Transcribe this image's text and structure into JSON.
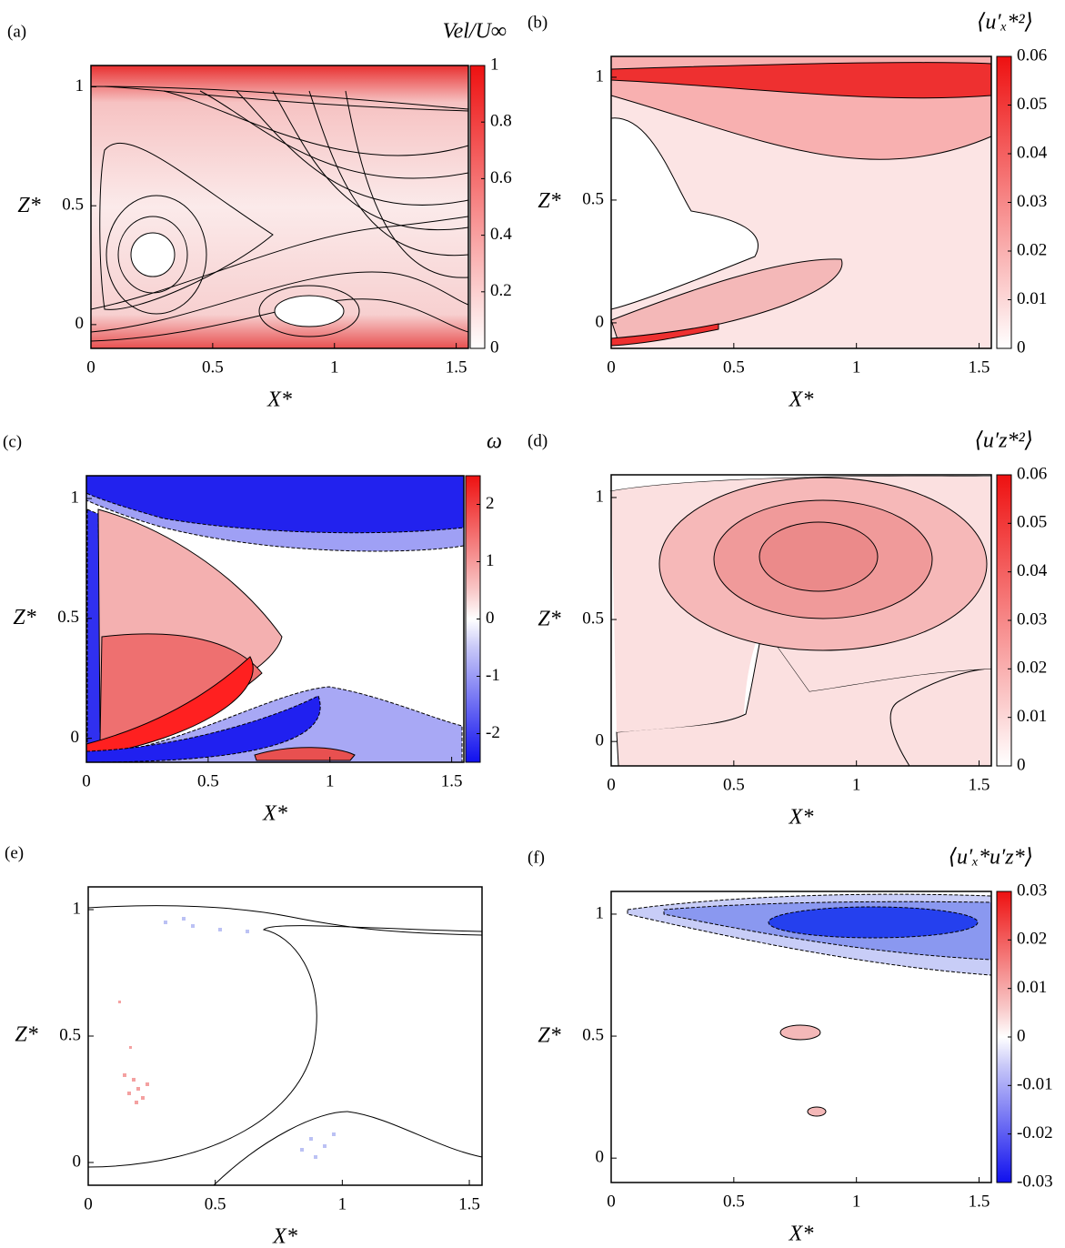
{
  "chart_data": [
    {
      "type": "contour",
      "panel_label": "(a)",
      "colorbar_label": "Vel/U∞",
      "x_label": "X*",
      "y_label": "Z*",
      "xlim": [
        0,
        1.55
      ],
      "ylim": [
        -0.1,
        1.09
      ],
      "xticks": [
        0,
        0.5,
        1,
        1.5
      ],
      "yticks": [
        0,
        0.5,
        1
      ],
      "clim": [
        0,
        1
      ],
      "cticks": [
        0,
        0.2,
        0.4,
        0.6,
        0.8,
        1
      ],
      "colormap": "white-red"
    },
    {
      "type": "contour",
      "panel_label": "(b)",
      "colorbar_label": "⟨u′ₓ*²⟩",
      "x_label": "X*",
      "y_label": "Z*",
      "xlim": [
        0,
        1.55
      ],
      "ylim": [
        -0.104,
        1.085
      ],
      "xticks": [
        0,
        0.5,
        1,
        1.5
      ],
      "yticks": [
        0,
        0.5,
        1
      ],
      "clim": [
        0,
        0.06
      ],
      "cticks": [
        0,
        0.01,
        0.02,
        0.03,
        0.04,
        0.05,
        0.06
      ],
      "colormap": "white-red"
    },
    {
      "type": "contour",
      "panel_label": "(c)",
      "colorbar_label": "ω",
      "x_label": "X*",
      "y_label": "Z*",
      "xlim": [
        0,
        1.55
      ],
      "ylim": [
        -0.1,
        1.095
      ],
      "xticks": [
        0,
        0.5,
        1,
        1.5
      ],
      "yticks": [
        0,
        0.5,
        1
      ],
      "clim": [
        -2.5,
        2.5
      ],
      "cticks": [
        -2,
        -1,
        0,
        1,
        2
      ],
      "colormap": "blue-white-red"
    },
    {
      "type": "contour",
      "panel_label": "(d)",
      "colorbar_label": "⟨u′z*²⟩",
      "x_label": "X*",
      "y_label": "Z*",
      "xlim": [
        0,
        1.55
      ],
      "ylim": [
        -0.1,
        1.093
      ],
      "xticks": [
        0,
        0.5,
        1,
        1.5
      ],
      "yticks": [
        0,
        0.5,
        1
      ],
      "clim": [
        0,
        0.06
      ],
      "cticks": [
        0,
        0.01,
        0.02,
        0.03,
        0.04,
        0.05,
        0.06
      ],
      "colormap": "white-red"
    },
    {
      "type": "contour",
      "panel_label": "(e)",
      "x_label": "X*",
      "y_label": "Z*",
      "xlim": [
        0,
        1.55
      ],
      "ylim": [
        -0.09,
        1.09
      ],
      "xticks": [
        0,
        0.5,
        1,
        1.5
      ],
      "yticks": [
        0,
        0.5,
        1
      ]
    },
    {
      "type": "contour",
      "panel_label": "(f)",
      "colorbar_label": "⟨u′ₓ*u′z*⟩",
      "x_label": "X*",
      "y_label": "Z*",
      "xlim": [
        0,
        1.55
      ],
      "ylim": [
        -0.1,
        1.093
      ],
      "xticks": [
        0,
        0.5,
        1,
        1.5
      ],
      "yticks": [
        0,
        0.5,
        1
      ],
      "clim": [
        -0.03,
        0.03
      ],
      "cticks": [
        -0.03,
        -0.02,
        -0.01,
        0,
        0.01,
        0.02,
        0.03
      ],
      "colormap": "blue-white-red"
    }
  ]
}
